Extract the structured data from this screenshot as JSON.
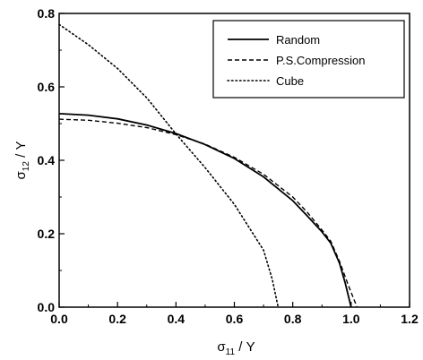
{
  "chart_data": {
    "type": "line",
    "title": "",
    "xlabel": {
      "symbol": "σ",
      "sub": "11",
      "suffix": " / Y"
    },
    "ylabel": {
      "symbol": "σ",
      "sub": "12",
      "suffix": " / Y"
    },
    "xlim": [
      0.0,
      1.2
    ],
    "ylim": [
      0.0,
      0.8
    ],
    "xticks": [
      "0.0",
      "0.2",
      "0.4",
      "0.6",
      "0.8",
      "1.0",
      "1.2"
    ],
    "yticks": [
      "0.0",
      "0.2",
      "0.4",
      "0.6",
      "0.8"
    ],
    "grid": false,
    "legend_position": "top-right",
    "series": [
      {
        "name": "Random",
        "style": "solid",
        "x": [
          0.0,
          0.1,
          0.2,
          0.3,
          0.4,
          0.5,
          0.6,
          0.7,
          0.8,
          0.85,
          0.9,
          0.93,
          0.96,
          0.98,
          1.0
        ],
        "y": [
          0.527,
          0.523,
          0.513,
          0.496,
          0.473,
          0.443,
          0.405,
          0.355,
          0.29,
          0.248,
          0.205,
          0.175,
          0.12,
          0.065,
          0.0
        ]
      },
      {
        "name": "P.S.Compression",
        "style": "dashed",
        "x": [
          0.0,
          0.1,
          0.2,
          0.3,
          0.4,
          0.5,
          0.6,
          0.7,
          0.8,
          0.85,
          0.9,
          0.93,
          0.96,
          0.99,
          1.02
        ],
        "y": [
          0.512,
          0.509,
          0.501,
          0.489,
          0.47,
          0.444,
          0.408,
          0.362,
          0.3,
          0.258,
          0.21,
          0.18,
          0.125,
          0.06,
          0.0
        ]
      },
      {
        "name": "Cube",
        "style": "dotted",
        "x": [
          0.0,
          0.1,
          0.2,
          0.3,
          0.4,
          0.5,
          0.6,
          0.7,
          0.73,
          0.75
        ],
        "y": [
          0.77,
          0.715,
          0.65,
          0.57,
          0.472,
          0.38,
          0.28,
          0.155,
          0.075,
          0.0
        ]
      }
    ]
  }
}
